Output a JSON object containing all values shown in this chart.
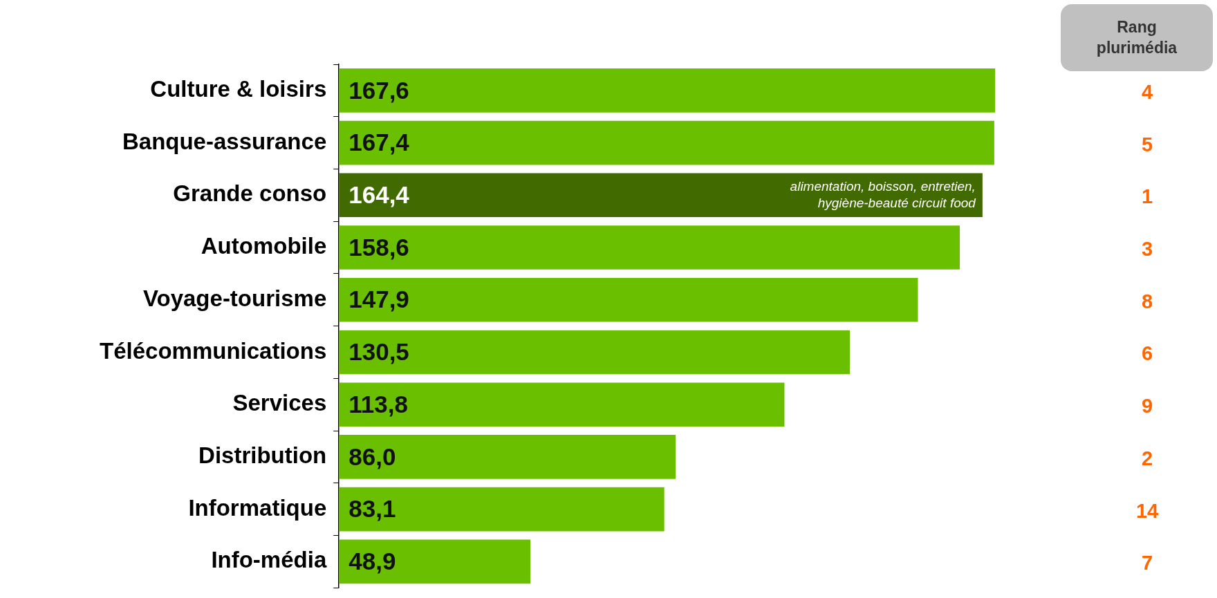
{
  "chart_data": {
    "type": "bar",
    "orientation": "horizontal",
    "categories": [
      "Culture & loisirs",
      "Banque-assurance",
      "Grande conso",
      "Automobile",
      "Voyage-tourisme",
      "Télécommunications",
      "Services",
      "Distribution",
      "Informatique",
      "Info-média"
    ],
    "values": [
      167.6,
      167.4,
      164.4,
      158.6,
      147.9,
      130.5,
      113.8,
      86.0,
      83.1,
      48.9
    ],
    "value_labels": [
      "167,6",
      "167,4",
      "164,4",
      "158,6",
      "147,9",
      "130,5",
      "113,8",
      "86,0",
      "83,1",
      "48,9"
    ],
    "colors": [
      "#6abf00",
      "#6abf00",
      "#416b00",
      "#6abf00",
      "#6abf00",
      "#6abf00",
      "#6abf00",
      "#6abf00",
      "#6abf00",
      "#6abf00"
    ],
    "data_labels": true,
    "grid": false,
    "legend": false,
    "tick_labels": "y",
    "annotations": [
      "Rang plurimédia",
      {
        "text": "alimentation, boisson, entretien, hygiène-beauté circuit food",
        "x": 164.4,
        "y": "Grande conso"
      },
      "4",
      "5",
      "1",
      "3",
      "8",
      "6",
      "9",
      "2",
      "14",
      "7"
    ]
  }
}
